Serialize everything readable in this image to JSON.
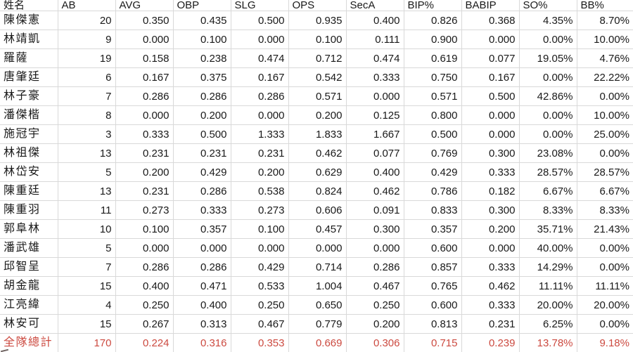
{
  "colors": {
    "total_red": "#cc4a40",
    "gridline": "#d9d9d9",
    "text": "#191919",
    "background": "#ffffff"
  },
  "table": {
    "columns": [
      "姓名",
      "AB",
      "AVG",
      "OBP",
      "SLG",
      "OPS",
      "SecA",
      "BIP%",
      "BABIP",
      "SO%",
      "BB%"
    ],
    "rows": [
      [
        "陳傑憲",
        "20",
        "0.350",
        "0.435",
        "0.500",
        "0.935",
        "0.400",
        "0.826",
        "0.368",
        "4.35%",
        "8.70%"
      ],
      [
        "林靖凱",
        "9",
        "0.000",
        "0.100",
        "0.000",
        "0.100",
        "0.111",
        "0.900",
        "0.000",
        "0.00%",
        "10.00%"
      ],
      [
        "羅薩",
        "19",
        "0.158",
        "0.238",
        "0.474",
        "0.712",
        "0.474",
        "0.619",
        "0.077",
        "19.05%",
        "4.76%"
      ],
      [
        "唐肇廷",
        "6",
        "0.167",
        "0.375",
        "0.167",
        "0.542",
        "0.333",
        "0.750",
        "0.167",
        "0.00%",
        "22.22%"
      ],
      [
        "林子豪",
        "7",
        "0.286",
        "0.286",
        "0.286",
        "0.571",
        "0.000",
        "0.571",
        "0.500",
        "42.86%",
        "0.00%"
      ],
      [
        "潘傑楷",
        "8",
        "0.000",
        "0.200",
        "0.000",
        "0.200",
        "0.125",
        "0.800",
        "0.000",
        "0.00%",
        "10.00%"
      ],
      [
        "施冠宇",
        "3",
        "0.333",
        "0.500",
        "1.333",
        "1.833",
        "1.667",
        "0.500",
        "0.000",
        "0.00%",
        "25.00%"
      ],
      [
        "林祖傑",
        "13",
        "0.231",
        "0.231",
        "0.231",
        "0.462",
        "0.077",
        "0.769",
        "0.300",
        "23.08%",
        "0.00%"
      ],
      [
        "林岱安",
        "5",
        "0.200",
        "0.429",
        "0.200",
        "0.629",
        "0.400",
        "0.429",
        "0.333",
        "28.57%",
        "28.57%"
      ],
      [
        "陳重廷",
        "13",
        "0.231",
        "0.286",
        "0.538",
        "0.824",
        "0.462",
        "0.786",
        "0.182",
        "6.67%",
        "6.67%"
      ],
      [
        "陳重羽",
        "11",
        "0.273",
        "0.333",
        "0.273",
        "0.606",
        "0.091",
        "0.833",
        "0.300",
        "8.33%",
        "8.33%"
      ],
      [
        "郭阜林",
        "10",
        "0.100",
        "0.357",
        "0.100",
        "0.457",
        "0.300",
        "0.357",
        "0.200",
        "35.71%",
        "21.43%"
      ],
      [
        "潘武雄",
        "5",
        "0.000",
        "0.000",
        "0.000",
        "0.000",
        "0.000",
        "0.600",
        "0.000",
        "40.00%",
        "0.00%"
      ],
      [
        "邱智呈",
        "7",
        "0.286",
        "0.286",
        "0.429",
        "0.714",
        "0.286",
        "0.857",
        "0.333",
        "14.29%",
        "0.00%"
      ],
      [
        "胡金龍",
        "15",
        "0.400",
        "0.471",
        "0.533",
        "1.004",
        "0.467",
        "0.765",
        "0.462",
        "11.11%",
        "11.11%"
      ],
      [
        "江亮緯",
        "4",
        "0.250",
        "0.400",
        "0.250",
        "0.650",
        "0.250",
        "0.600",
        "0.333",
        "20.00%",
        "20.00%"
      ],
      [
        "林安可",
        "15",
        "0.267",
        "0.313",
        "0.467",
        "0.779",
        "0.200",
        "0.813",
        "0.231",
        "6.25%",
        "0.00%"
      ]
    ],
    "total": [
      "全隊總計",
      "170",
      "0.224",
      "0.316",
      "0.353",
      "0.669",
      "0.306",
      "0.715",
      "0.239",
      "13.78%",
      "9.18%"
    ]
  }
}
